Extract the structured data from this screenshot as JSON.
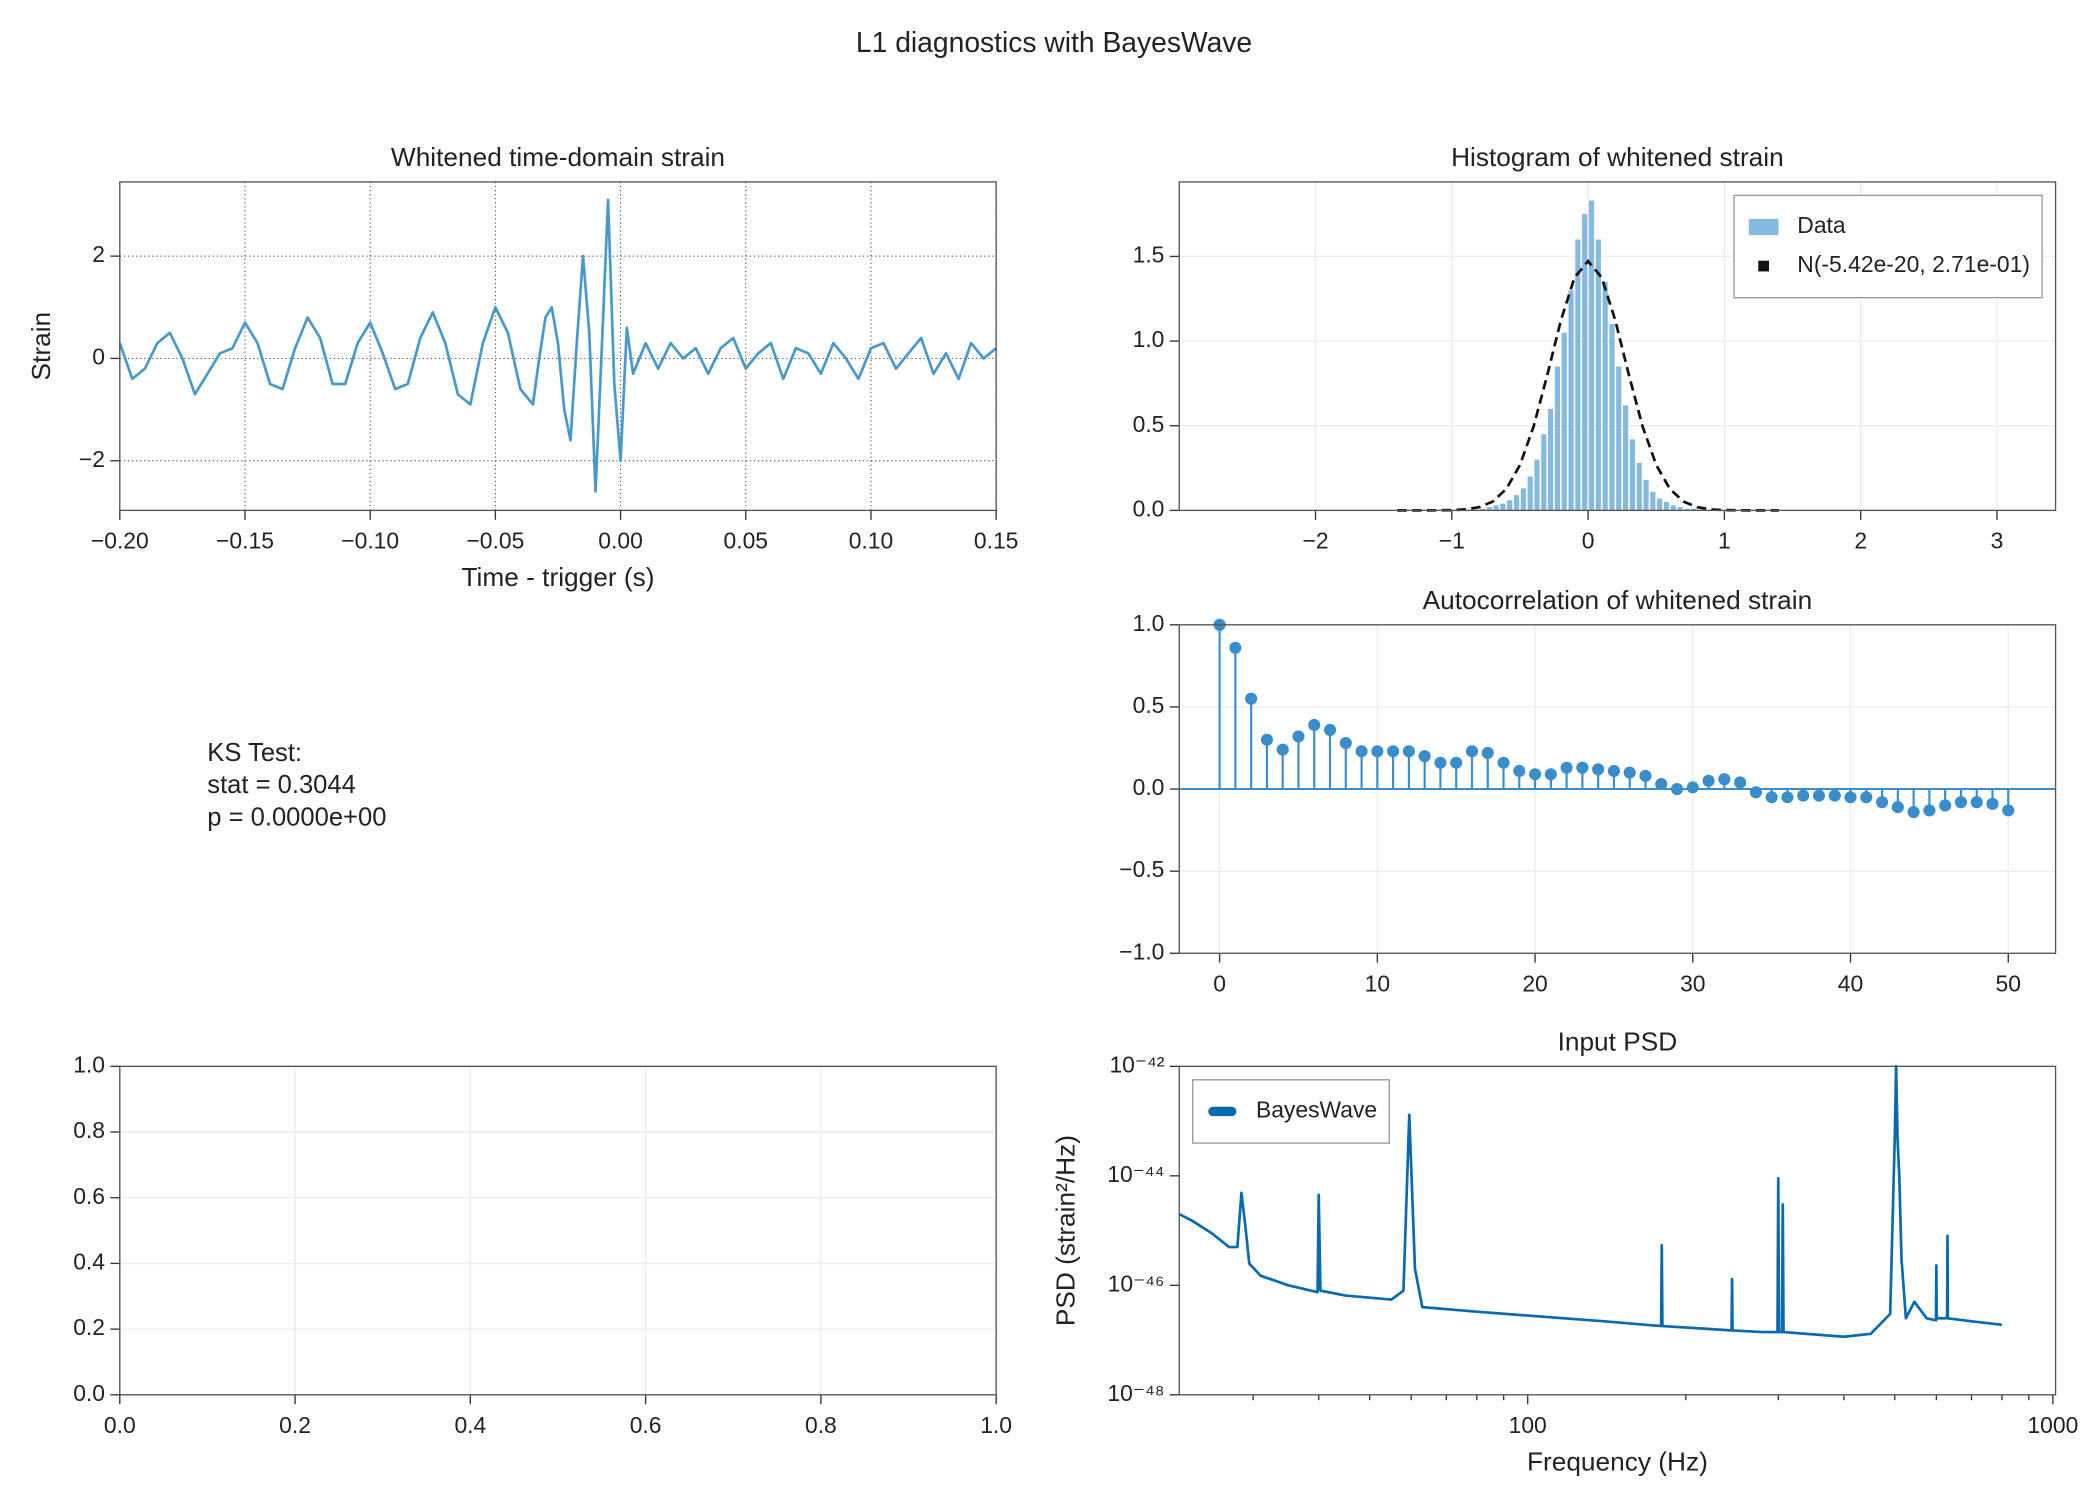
{
  "title": "L1 diagnostics with BayesWave",
  "chart_data": [
    {
      "type": "line",
      "title": "Whitened time-domain strain",
      "x_label": "Time - trigger (s)",
      "y_label": "Strain",
      "xlim": [
        -0.2,
        0.15
      ],
      "ylim": [
        -2.97,
        3.45
      ],
      "xticks": [
        {
          "value": -0.2,
          "label": "−0.20"
        },
        {
          "value": -0.15,
          "label": "−0.15"
        },
        {
          "value": -0.1,
          "label": "−0.10"
        },
        {
          "value": -0.05,
          "label": "−0.05"
        },
        {
          "value": 0,
          "label": "0.00"
        },
        {
          "value": 0.05,
          "label": "0.05"
        },
        {
          "value": 0.1,
          "label": "0.10"
        },
        {
          "value": 0.15,
          "label": "0.15"
        }
      ],
      "yticks": [
        {
          "value": -2,
          "label": "−2"
        },
        0,
        2
      ],
      "grid": true,
      "grid_style": "dotted",
      "x": [
        -0.2,
        -0.195,
        -0.19,
        -0.185,
        -0.18,
        -0.175,
        -0.17,
        -0.165,
        -0.16,
        -0.155,
        -0.15,
        -0.145,
        -0.14,
        -0.135,
        -0.13,
        -0.125,
        -0.12,
        -0.115,
        -0.11,
        -0.105,
        -0.1,
        -0.095,
        -0.09,
        -0.085,
        -0.08,
        -0.075,
        -0.07,
        -0.065,
        -0.06,
        -0.055,
        -0.05,
        -0.045,
        -0.04,
        -0.035,
        -0.0325,
        -0.03,
        -0.0275,
        -0.025,
        -0.0225,
        -0.02,
        -0.0175,
        -0.015,
        -0.0125,
        -0.01,
        -0.0075,
        -0.005,
        -0.0025,
        0,
        0.0025,
        0.005,
        0.01,
        0.015,
        0.02,
        0.025,
        0.03,
        0.035,
        0.04,
        0.045,
        0.05,
        0.055,
        0.06,
        0.065,
        0.07,
        0.075,
        0.08,
        0.085,
        0.09,
        0.095,
        0.1,
        0.105,
        0.11,
        0.115,
        0.12,
        0.125,
        0.13,
        0.135,
        0.14,
        0.145,
        0.15
      ],
      "series": [
        {
          "color": "#4a98c9",
          "values": [
            0.3,
            -0.4,
            -0.2,
            0.3,
            0.5,
            0.0,
            -0.7,
            -0.3,
            0.1,
            0.2,
            0.7,
            0.3,
            -0.5,
            -0.6,
            0.2,
            0.8,
            0.4,
            -0.5,
            -0.5,
            0.3,
            0.7,
            0.1,
            -0.6,
            -0.5,
            0.4,
            0.9,
            0.3,
            -0.7,
            -0.9,
            0.3,
            1.0,
            0.5,
            -0.6,
            -0.9,
            0.0,
            0.8,
            1.0,
            0.3,
            -1.0,
            -1.6,
            0.3,
            2.0,
            0.5,
            -2.6,
            0.2,
            3.1,
            -0.5,
            -2.0,
            0.6,
            -0.3,
            0.3,
            -0.2,
            0.3,
            0.0,
            0.2,
            -0.3,
            0.2,
            0.4,
            -0.2,
            0.1,
            0.3,
            -0.4,
            0.2,
            0.1,
            -0.3,
            0.3,
            0.0,
            -0.4,
            0.2,
            0.3,
            -0.2,
            0.1,
            0.4,
            -0.3,
            0.1,
            -0.4,
            0.3,
            0.0,
            0.2
          ]
        }
      ]
    },
    {
      "type": "histogram",
      "title": "Histogram of whitened strain",
      "xlim": [
        -3.0,
        3.43
      ],
      "ylim": [
        0,
        1.94
      ],
      "xticks": [
        {
          "value": -2,
          "label": "−2"
        },
        {
          "value": -1,
          "label": "−1"
        },
        0,
        1,
        2,
        3
      ],
      "yticks": [
        {
          "value": 0,
          "label": "0.0"
        },
        0.5,
        {
          "value": 1,
          "label": "1.0"
        },
        1.5
      ],
      "grid": true,
      "grid_style": "faint",
      "legend": "upper right",
      "bins": [
        -0.8,
        -0.75,
        -0.7,
        -0.65,
        -0.6,
        -0.55,
        -0.5,
        -0.45,
        -0.4,
        -0.35,
        -0.3,
        -0.25,
        -0.2,
        -0.15,
        -0.1,
        -0.05,
        0,
        0.05,
        0.1,
        0.15,
        0.2,
        0.25,
        0.3,
        0.35,
        0.4,
        0.45,
        0.5,
        0.55,
        0.6,
        0.65,
        0.7,
        0.75,
        0.8
      ],
      "series": [
        {
          "name": "Data",
          "color": "#86b9de",
          "values": [
            0.01,
            0.02,
            0.03,
            0.04,
            0.06,
            0.09,
            0.13,
            0.2,
            0.3,
            0.45,
            0.6,
            0.85,
            1.05,
            1.3,
            1.6,
            1.75,
            1.83,
            1.6,
            1.35,
            1.1,
            0.85,
            0.62,
            0.42,
            0.28,
            0.18,
            0.11,
            0.07,
            0.05,
            0.03,
            0.02,
            0.01,
            0.01
          ]
        }
      ],
      "fit": {
        "name": "N(-5.42e-20, 2.71e-01)",
        "color": "#111111",
        "x": [
          -1.4,
          -1.3,
          -1.2,
          -1.1,
          -1.0,
          -0.9,
          -0.8,
          -0.7,
          -0.6,
          -0.5,
          -0.4,
          -0.3,
          -0.2,
          -0.1,
          0,
          0.1,
          0.2,
          0.3,
          0.4,
          0.5,
          0.6,
          0.7,
          0.8,
          0.9,
          1.0,
          1.1,
          1.2,
          1.3,
          1.4
        ],
        "values": [
          0,
          0,
          0.0001,
          0.0004,
          0.0016,
          0.006,
          0.019,
          0.052,
          0.127,
          0.268,
          0.495,
          0.798,
          1.121,
          1.375,
          1.472,
          1.375,
          1.121,
          0.798,
          0.495,
          0.268,
          0.127,
          0.052,
          0.019,
          0.006,
          0.0016,
          0.0004,
          0.0001,
          0,
          0
        ]
      }
    },
    {
      "type": "stem",
      "title": "Autocorrelation of whitened strain",
      "xlim": [
        -2.56,
        53.0
      ],
      "ylim": [
        -1,
        1
      ],
      "xticks": [
        0,
        10,
        20,
        30,
        40,
        50
      ],
      "yticks": [
        {
          "value": -1,
          "label": "−1.0"
        },
        {
          "value": -0.5,
          "label": "−0.5"
        },
        {
          "value": 0,
          "label": "0.0"
        },
        0.5,
        {
          "value": 1,
          "label": "1.0"
        }
      ],
      "grid": true,
      "grid_style": "faint",
      "color": "#3a8dc8",
      "x": [
        0,
        1,
        2,
        3,
        4,
        5,
        6,
        7,
        8,
        9,
        10,
        11,
        12,
        13,
        14,
        15,
        16,
        17,
        18,
        19,
        20,
        21,
        22,
        23,
        24,
        25,
        26,
        27,
        28,
        29,
        30,
        31,
        32,
        33,
        34,
        35,
        36,
        37,
        38,
        39,
        40,
        41,
        42,
        43,
        44,
        45,
        46,
        47,
        48,
        49,
        50
      ],
      "values": [
        1.0,
        0.86,
        0.55,
        0.3,
        0.24,
        0.32,
        0.39,
        0.36,
        0.28,
        0.23,
        0.23,
        0.23,
        0.23,
        0.2,
        0.16,
        0.16,
        0.23,
        0.22,
        0.16,
        0.11,
        0.09,
        0.09,
        0.13,
        0.13,
        0.12,
        0.11,
        0.1,
        0.08,
        0.03,
        0.0,
        0.01,
        0.05,
        0.06,
        0.04,
        -0.02,
        -0.05,
        -0.05,
        -0.04,
        -0.04,
        -0.04,
        -0.05,
        -0.05,
        -0.08,
        -0.11,
        -0.14,
        -0.13,
        -0.1,
        -0.08,
        -0.08,
        -0.09,
        -0.13
      ]
    },
    {
      "type": "text",
      "lines": [
        "KS Test:",
        "stat = 0.3044",
        "p = 0.0000e+00"
      ]
    },
    {
      "type": "empty",
      "xlim": [
        0,
        1
      ],
      "ylim": [
        0,
        1
      ],
      "xticks": [
        {
          "value": 0,
          "label": "0.0"
        },
        0.2,
        0.4,
        0.6,
        0.8,
        {
          "value": 1,
          "label": "1.0"
        }
      ],
      "yticks": [
        {
          "value": 0,
          "label": "0.0"
        },
        0.2,
        0.4,
        0.6,
        0.8,
        {
          "value": 1,
          "label": "1.0"
        }
      ],
      "grid": true,
      "grid_style": "faint"
    },
    {
      "type": "line",
      "title": "Input PSD",
      "x_label": "Frequency (Hz)",
      "y_label": "PSD (strain²/Hz)",
      "log_x": true,
      "log_y": true,
      "xlim": [
        21.7,
        1012
      ],
      "ylim": [
        1e-48,
        1e-42
      ],
      "xticks": [
        100,
        1000
      ],
      "xminorticks": [
        30,
        40,
        50,
        60,
        70,
        80,
        90,
        200,
        300,
        400,
        500,
        600,
        700,
        800,
        900
      ],
      "yticks": [
        {
          "value": 1e-48,
          "label": "10⁻⁴⁸"
        },
        {
          "value": 1e-46,
          "label": "10⁻⁴⁶"
        },
        {
          "value": 1e-44,
          "label": "10⁻⁴⁴"
        },
        {
          "value": 1e-42,
          "label": "10⁻⁴²"
        }
      ],
      "grid": false,
      "legend": "upper left",
      "x": [
        21.7,
        23,
        25,
        27,
        28,
        28.5,
        29,
        29.5,
        31,
        35,
        39.8,
        40,
        40.3,
        45,
        55,
        58,
        59.5,
        61,
        63,
        80,
        100,
        140,
        179.5,
        180,
        180.5,
        220,
        244.5,
        245,
        245.5,
        280,
        299,
        300,
        301,
        305,
        306,
        307,
        400,
        450,
        490,
        500,
        503,
        506,
        510,
        515,
        525,
        545,
        575,
        599,
        600,
        601,
        629,
        630,
        631,
        700,
        800
      ],
      "series": [
        {
          "name": "BayesWave",
          "color": "#0a6aad",
          "values": [
            2e-45,
            1.5e-45,
            9e-46,
            5e-46,
            5e-46,
            4.9e-45,
            1.2e-45,
            2.5e-46,
            1.5e-46,
            1e-46,
            7.5e-47,
            4.5e-45,
            8e-47,
            6.5e-47,
            5.5e-47,
            8e-47,
            1.3e-43,
            2e-46,
            4e-47,
            3.3e-47,
            2.8e-47,
            2.2e-47,
            1.8e-47,
            5.4e-46,
            1.8e-47,
            1.6e-47,
            1.5e-47,
            1.3e-46,
            1.5e-47,
            1.4e-47,
            1.4e-47,
            9e-45,
            1.4e-47,
            1.4e-47,
            3e-45,
            1.4e-47,
            1.15e-47,
            1.3e-47,
            3e-47,
            5e-44,
            1e-42,
            5e-44,
            1e-44,
            3e-46,
            2.5e-47,
            5e-47,
            2.5e-47,
            2.3e-47,
            2.3e-46,
            2.5e-47,
            2.5e-47,
            8e-46,
            2.5e-47,
            2.2e-47,
            1.9e-47
          ]
        }
      ]
    }
  ]
}
